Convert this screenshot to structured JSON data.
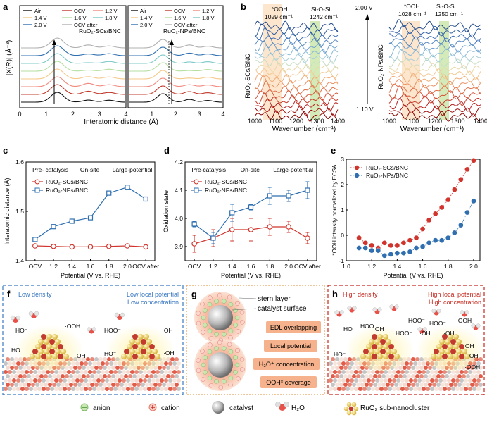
{
  "panel_labels": {
    "a": "a",
    "b": "b",
    "c": "c",
    "d": "d",
    "e": "e",
    "f": "f",
    "g": "g",
    "h": "h"
  },
  "panel_a": {
    "ylabel": "|X(R)| (Å⁻³)",
    "xlabel": "Interatomic distance (Å)",
    "left_title": "RuO₂-SCs/BNC",
    "right_title": "RuO₂-NPs/BNC",
    "legend": [
      {
        "label": "Air",
        "color": "#111111"
      },
      {
        "label": "OCV",
        "color": "#c0392b"
      },
      {
        "label": "1.2 V",
        "color": "#f08a7e"
      },
      {
        "label": "1.4 V",
        "color": "#f5c98a"
      },
      {
        "label": "1.6 V",
        "color": "#b5dfa0"
      },
      {
        "label": "1.8 V",
        "color": "#7cc8c8"
      },
      {
        "label": "2.0 V",
        "color": "#2f6fb0"
      },
      {
        "label": "OCV after",
        "color": "#b0b0b0"
      }
    ],
    "xticks": [
      "0",
      "1",
      "2",
      "3",
      "4"
    ],
    "xticks_right": [
      "1",
      "2",
      "3",
      "4"
    ]
  },
  "panel_b": {
    "xlabel": "Wavenumber (cm⁻¹)",
    "left_ylabel": "RuO₂-SCs/BNC",
    "right_ylabel": "RuO₂-NPs/BNC",
    "peak_ooh_left": "*OOH",
    "peak_ooh_left_val": "1029 cm⁻¹",
    "peak_sio_left": "Si-O-Si",
    "peak_sio_left_val": "1242 cm⁻¹",
    "peak_ooh_right": "*OOH",
    "peak_ooh_right_val": "1028 cm⁻¹",
    "peak_sio_right": "Si-O-Si",
    "peak_sio_right_val": "1250 cm⁻¹",
    "top_voltage": "2.00 V",
    "bottom_voltage": "1.10 V",
    "xticks": [
      "1000",
      "1100",
      "1200",
      "1300",
      "1400"
    ]
  },
  "chart_data": [
    {
      "type": "line",
      "title": "",
      "xlabel": "Potential (V vs. RHE)",
      "ylabel": "Interatomic distance (Å)",
      "categories": [
        "OCV",
        "1.2",
        "1.4",
        "1.6",
        "1.8",
        "2.0",
        "OCV after"
      ],
      "ylim": [
        1.4,
        1.6
      ],
      "yticks": [
        "1.4",
        "1.5",
        "1.6"
      ],
      "stage_labels": [
        "Pre- catalysis",
        "On-site",
        "Large-potential"
      ],
      "series": [
        {
          "name": "RuO₂-SCs/BNC",
          "color": "#d0342c",
          "marker": "circle",
          "values": [
            1.43,
            1.429,
            1.428,
            1.428,
            1.429,
            1.43,
            1.428
          ]
        },
        {
          "name": "RuO₂-NPs/BNC",
          "color": "#2f6fb0",
          "marker": "square",
          "values": [
            1.443,
            1.469,
            1.48,
            1.487,
            1.537,
            1.549,
            1.525
          ]
        }
      ]
    },
    {
      "type": "line",
      "title": "",
      "xlabel": "Potential (V vs. RHE)",
      "ylabel": "Oxidation state",
      "categories": [
        "OCV",
        "1.2",
        "1.4",
        "1.6",
        "1.8",
        "2.0",
        "OCV after"
      ],
      "ylim": [
        3.85,
        4.2
      ],
      "yticks": [
        "3.9",
        "4.0",
        "4.1",
        "4.2"
      ],
      "stage_labels": [
        "Pre-catalysis",
        "On-site",
        "Large-potential"
      ],
      "series": [
        {
          "name": "RuO₂-SCs/BNC",
          "color": "#d0342c",
          "marker": "circle",
          "values": [
            3.91,
            3.93,
            3.96,
            3.96,
            3.97,
            3.97,
            3.93
          ],
          "errors": [
            0.03,
            0.03,
            0.04,
            0.04,
            0.03,
            0.02,
            0.02
          ]
        },
        {
          "name": "RuO₂-NPs/BNC",
          "color": "#2f6fb0",
          "marker": "square",
          "values": [
            3.98,
            3.93,
            4.02,
            4.04,
            4.08,
            4.08,
            4.1
          ],
          "errors": [
            0.01,
            0.02,
            0.03,
            0.01,
            0.03,
            0.02,
            0.03
          ]
        }
      ]
    },
    {
      "type": "scatter",
      "title": "",
      "xlabel": "Potential (V vs. RHE)",
      "ylabel": "*OOH intensity normalized by ECSA",
      "xlim": [
        1.0,
        2.05
      ],
      "ylim": [
        -1,
        3
      ],
      "xticks": [
        "1.0",
        "1.2",
        "1.4",
        "1.6",
        "1.8",
        "2.0"
      ],
      "yticks": [
        "-1",
        "0",
        "1",
        "2",
        "3"
      ],
      "series": [
        {
          "name": "RuO₂-SCs/BNC",
          "color": "#d0342c",
          "x": [
            1.1,
            1.15,
            1.2,
            1.25,
            1.3,
            1.35,
            1.4,
            1.45,
            1.5,
            1.55,
            1.6,
            1.65,
            1.7,
            1.75,
            1.8,
            1.85,
            1.9,
            1.95,
            2.0
          ],
          "values": [
            -0.1,
            -0.3,
            -0.4,
            -0.5,
            -0.3,
            -0.4,
            -0.4,
            -0.3,
            -0.2,
            -0.1,
            0.25,
            0.6,
            0.85,
            1.1,
            1.4,
            1.8,
            2.2,
            2.6,
            2.95
          ]
        },
        {
          "name": "RuO₂-NPs/BNC",
          "color": "#2f6fb0",
          "x": [
            1.1,
            1.15,
            1.2,
            1.25,
            1.3,
            1.35,
            1.4,
            1.45,
            1.5,
            1.55,
            1.6,
            1.65,
            1.7,
            1.75,
            1.8,
            1.85,
            1.9,
            1.95,
            2.0
          ],
          "values": [
            -0.5,
            -0.5,
            -0.6,
            -0.6,
            -0.8,
            -0.75,
            -0.7,
            -0.7,
            -0.65,
            -0.5,
            -0.45,
            -0.3,
            -0.2,
            -0.2,
            -0.1,
            0.1,
            0.4,
            0.9,
            1.35
          ]
        }
      ]
    }
  ],
  "panel_f": {
    "low_density": "Low density",
    "low_potential": "Low local potential",
    "low_concentration": "Low concentration",
    "labels": [
      "HO⁻",
      "·OOH",
      "HOO⁻",
      "·OH",
      "HO⁻",
      "·OH",
      "HO⁻",
      "·OH"
    ]
  },
  "panel_g": {
    "stern": "stern layer",
    "surface": "catalyst surface",
    "boxes": [
      "EDL overlapping",
      "Local potential",
      "H₃O⁺ concentration",
      "OOH* coverage"
    ]
  },
  "panel_h": {
    "high_density": "High density",
    "high_potential": "High local potential",
    "high_concentration": "High concentration",
    "labels": [
      "HO⁻",
      "HOO⁻",
      "·OH",
      "HOO⁻",
      "·OH",
      "HOO⁻",
      "·OH",
      "·OOH",
      "HOO⁻",
      "·OH",
      "·OH",
      "HO⁻",
      "·OOH"
    ]
  },
  "legend_bottom": {
    "anion": "anion",
    "cation": "cation",
    "catalyst": "catalyst",
    "water": "H₂O",
    "cluster": "RuO₂ sub-nanocluster"
  }
}
